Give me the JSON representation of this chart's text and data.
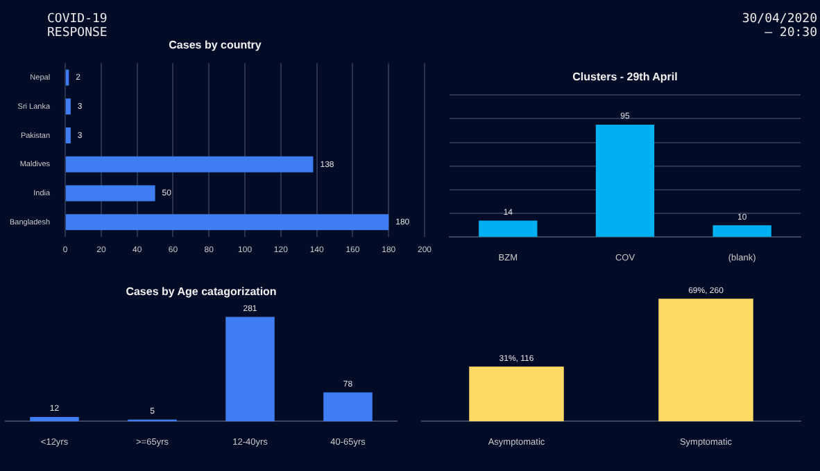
{
  "chart_data": [
    {
      "type": "other",
      "title": "COVID-19 RESPONSE",
      "annotations": [
        "30/04/2020 — 20:30"
      ]
    },
    {
      "type": "bar",
      "title": "Cases by country",
      "orientation": "horizontal",
      "categories": [
        "Nepal",
        "Sri Lanka",
        "Pakistan",
        "Maldives",
        "India",
        "Bangladesh"
      ],
      "values": [
        2,
        3,
        3,
        138,
        50,
        180
      ],
      "color": "#3f7ef2",
      "xlim": [
        0,
        200
      ],
      "xticks": [
        0,
        20,
        40,
        60,
        80,
        100,
        120,
        140,
        160,
        180,
        200
      ],
      "grid": "x",
      "data_labels": true
    },
    {
      "type": "bar",
      "title": "Clusters - 29th April",
      "categories": [
        "BZM",
        "COV",
        "(blank)"
      ],
      "values": [
        14,
        95,
        10
      ],
      "color": "#00b0f0",
      "grid": "y",
      "tick_labels": "x",
      "data_labels": true
    },
    {
      "type": "bar",
      "title": "Cases by Age catagorization",
      "categories": [
        "<12yrs",
        ">=65yrs",
        "12-40yrs",
        "40-65yrs"
      ],
      "values": [
        12,
        5,
        281,
        78
      ],
      "color": "#3f7ef2",
      "tick_labels": "x",
      "data_labels": true
    },
    {
      "type": "bar",
      "categories": [
        "Asymptomatic",
        "Symptomatic"
      ],
      "values": [
        116,
        260
      ],
      "value_labels": [
        "31%, 116",
        "69%, 260"
      ],
      "color": "#ffd966",
      "tick_labels": "x"
    }
  ]
}
